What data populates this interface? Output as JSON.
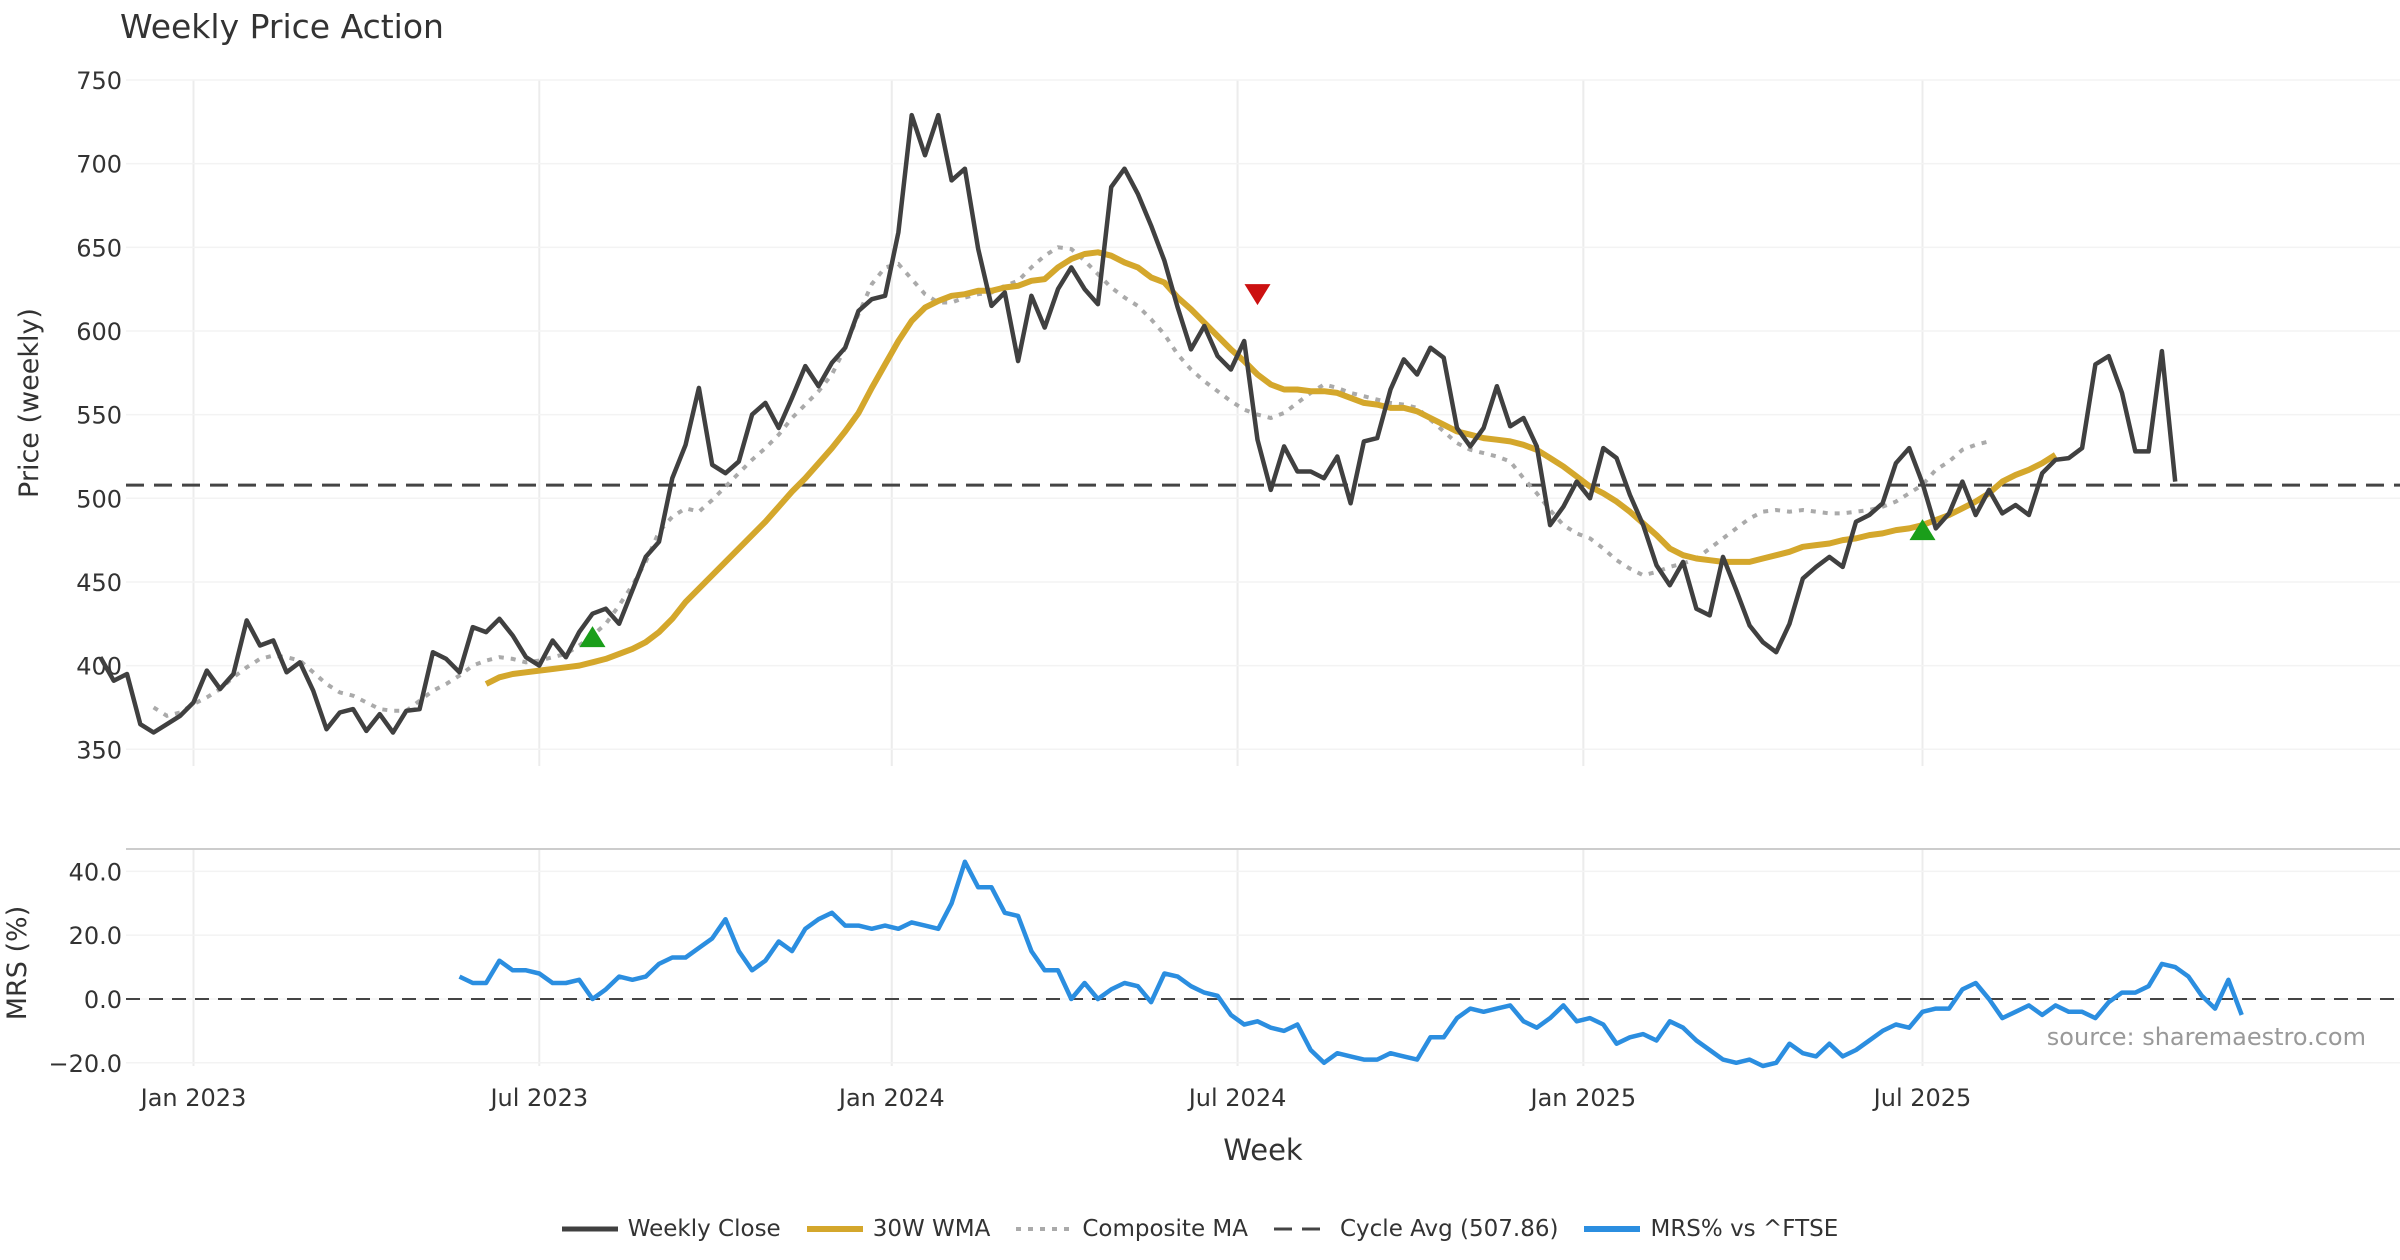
{
  "title": "Weekly Price Action",
  "source": "source: sharemaestro.com",
  "colors": {
    "close": "#404040",
    "wma": "#d4a72c",
    "composite": "#aaaaaa",
    "cycle": "#444444",
    "mrs": "#2b8ee0",
    "buy": "#1a9e1a",
    "sell": "#cc1111",
    "grid": "#ececec"
  },
  "legend": {
    "close": "Weekly Close",
    "wma": "30W WMA",
    "composite": "Composite MA",
    "cycle": "Cycle Avg (507.86)",
    "mrs": "MRS% vs ^FTSE"
  },
  "chart_data": [
    {
      "type": "line",
      "title": "Weekly Price Action",
      "xlabel": "Week",
      "ylabel": "Price (weekly)",
      "ylim": [
        340,
        750
      ],
      "yticks": [
        350,
        400,
        450,
        500,
        550,
        600,
        650,
        700,
        750
      ],
      "xticks": [
        {
          "label": "Jan 2023",
          "index": 5
        },
        {
          "label": "Jul 2023",
          "index": 31
        },
        {
          "label": "Jan 2024",
          "index": 57.5
        },
        {
          "label": "Jul 2024",
          "index": 83.5
        },
        {
          "label": "Jan 2025",
          "index": 109.5
        },
        {
          "label": "Jul 2025",
          "index": 135
        }
      ],
      "cycle_avg": 507.86,
      "close_start_index": -2,
      "close": [
        405,
        391,
        395,
        365,
        360,
        365,
        370,
        378,
        397,
        386,
        395,
        427,
        412,
        415,
        396,
        402,
        385,
        362,
        372,
        374,
        361,
        371,
        360,
        373,
        374,
        408,
        404,
        396,
        423,
        420,
        428,
        418,
        405,
        400,
        415,
        405,
        420,
        431,
        434,
        425,
        445,
        465,
        474,
        512,
        532,
        566,
        520,
        515,
        522,
        550,
        557,
        542,
        560,
        579,
        567,
        581,
        590,
        612,
        619,
        621,
        659,
        729,
        705,
        729,
        690,
        697,
        649,
        615,
        623,
        582,
        621,
        602,
        625,
        638,
        625,
        616,
        686,
        697,
        682,
        663,
        642,
        614,
        589,
        603,
        585,
        577,
        594,
        535,
        505,
        531,
        516,
        516,
        512,
        525,
        497,
        534,
        536,
        565,
        583,
        574,
        590,
        584,
        542,
        531,
        542,
        567,
        543,
        548,
        531,
        484,
        495,
        510,
        500,
        530,
        524,
        502,
        484,
        460,
        448,
        462,
        434,
        430,
        465,
        445,
        424,
        414,
        408,
        425,
        452,
        459,
        465,
        459,
        486,
        490,
        497,
        521,
        530,
        509,
        482,
        491,
        510,
        490,
        505,
        491,
        496,
        490,
        515,
        523,
        524,
        530,
        580,
        585,
        563,
        528,
        528,
        588,
        510
      ],
      "wma_start_index": 27,
      "wma": [
        389,
        393,
        395,
        396,
        397,
        398,
        399,
        400,
        402,
        404,
        407,
        410,
        414,
        420,
        428,
        438,
        446,
        454,
        462,
        470,
        478,
        486,
        495,
        504,
        512,
        521,
        530,
        540,
        551,
        566,
        580,
        594,
        606,
        614,
        618,
        621,
        622,
        624,
        624,
        626,
        627,
        630,
        631,
        638,
        643,
        646,
        647,
        645,
        641,
        638,
        632,
        629,
        620,
        613,
        605,
        597,
        589,
        582,
        574,
        568,
        565,
        565,
        564,
        564,
        563,
        560,
        557,
        556,
        554,
        554,
        552,
        548,
        544,
        540,
        538,
        536,
        535,
        534,
        532,
        529,
        524,
        519,
        513,
        507,
        503,
        498,
        492,
        485,
        478,
        470,
        466,
        464,
        463,
        462,
        462,
        462,
        464,
        466,
        468,
        471,
        472,
        473,
        475,
        476,
        478,
        479,
        481,
        482,
        484,
        487,
        490,
        494,
        498,
        503,
        510,
        514,
        517,
        521,
        526
      ],
      "composite_start_index": 2,
      "composite": [
        375,
        370,
        372,
        377,
        381,
        386,
        393,
        399,
        404,
        406,
        405,
        403,
        396,
        389,
        384,
        382,
        378,
        374,
        373,
        373,
        379,
        385,
        389,
        394,
        400,
        403,
        405,
        404,
        402,
        403,
        405,
        407,
        412,
        418,
        425,
        436,
        448,
        462,
        480,
        489,
        494,
        492,
        499,
        507,
        515,
        523,
        530,
        538,
        548,
        556,
        564,
        574,
        590,
        610,
        628,
        638,
        640,
        631,
        622,
        617,
        617,
        620,
        622,
        623,
        627,
        630,
        638,
        645,
        650,
        649,
        642,
        634,
        626,
        620,
        615,
        607,
        598,
        586,
        577,
        570,
        564,
        558,
        553,
        550,
        548,
        551,
        557,
        563,
        568,
        566,
        563,
        561,
        559,
        557,
        556,
        554,
        547,
        540,
        533,
        529,
        527,
        525,
        522,
        512,
        503,
        493,
        484,
        479,
        476,
        470,
        463,
        458,
        454,
        456,
        459,
        461,
        464,
        470,
        476,
        482,
        488,
        492,
        493,
        492,
        493,
        492,
        491,
        491,
        492,
        493,
        495,
        498,
        503,
        508,
        517,
        522,
        529,
        532,
        534
      ],
      "signals": [
        {
          "type": "buy",
          "index": 35,
          "value": 417
        },
        {
          "type": "sell",
          "index": 85,
          "value": 622
        },
        {
          "type": "buy",
          "index": 135,
          "value": 481
        }
      ]
    },
    {
      "type": "line",
      "xlabel": "Week",
      "ylabel": "MRS (%)",
      "ylim": [
        -21,
        47
      ],
      "yticks": [
        -20.0,
        0.0,
        20.0,
        40.0
      ],
      "ytick_labels": [
        "−20.0",
        "0.0",
        "20.0",
        "40.0"
      ],
      "zero_line": 0,
      "mrs_start_index": 25,
      "mrs": [
        7,
        5,
        5,
        12,
        9,
        9,
        8,
        5,
        5,
        6,
        0,
        3,
        7,
        6,
        7,
        11,
        13,
        13,
        16,
        19,
        25,
        15,
        9,
        12,
        18,
        15,
        22,
        25,
        27,
        23,
        23,
        22,
        23,
        22,
        24,
        23,
        22,
        30,
        43,
        35,
        35,
        27,
        26,
        15,
        9,
        9,
        0,
        5,
        0,
        3,
        5,
        4,
        -1,
        8,
        7,
        4,
        2,
        1,
        -5,
        -8,
        -7,
        -9,
        -10,
        -8,
        -16,
        -20,
        -17,
        -18,
        -19,
        -19,
        -17,
        -18,
        -19,
        -12,
        -12,
        -6,
        -3,
        -4,
        -3,
        -2,
        -7,
        -9,
        -6,
        -2,
        -7,
        -6,
        -8,
        -14,
        -12,
        -11,
        -13,
        -7,
        -9,
        -13,
        -16,
        -19,
        -20,
        -19,
        -21,
        -20,
        -14,
        -17,
        -18,
        -14,
        -18,
        -16,
        -13,
        -10,
        -8,
        -9,
        -4,
        -3,
        -3,
        3,
        5,
        0,
        -6,
        -4,
        -2,
        -5,
        -2,
        -4,
        -4,
        -6,
        -1,
        2,
        2,
        4,
        11,
        10,
        7,
        1,
        -3,
        6,
        -5
      ]
    }
  ]
}
